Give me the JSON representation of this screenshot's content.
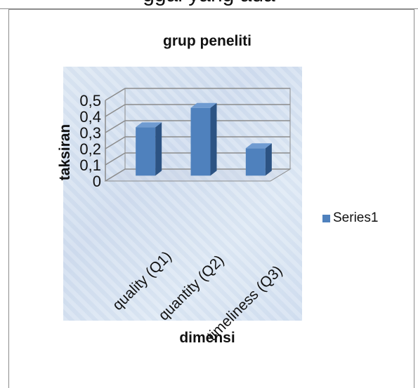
{
  "header_fragment": "ggal yang ada",
  "chart_data": {
    "type": "bar",
    "title": "grup peneliti",
    "xlabel": "dimensi",
    "ylabel": "taksiran",
    "categories": [
      "quality (Q1)",
      "quantity (Q2)",
      "timeliness (Q3)"
    ],
    "series": [
      {
        "name": "Series1",
        "values": [
          0.3,
          0.42,
          0.17
        ]
      }
    ],
    "yticks": [
      "0",
      "0,1",
      "0,2",
      "0,3",
      "0,4",
      "0,5"
    ],
    "ylim": [
      0,
      0.5
    ],
    "grid": true,
    "legend": "right",
    "color": "#4f81bd",
    "three_d": true
  }
}
